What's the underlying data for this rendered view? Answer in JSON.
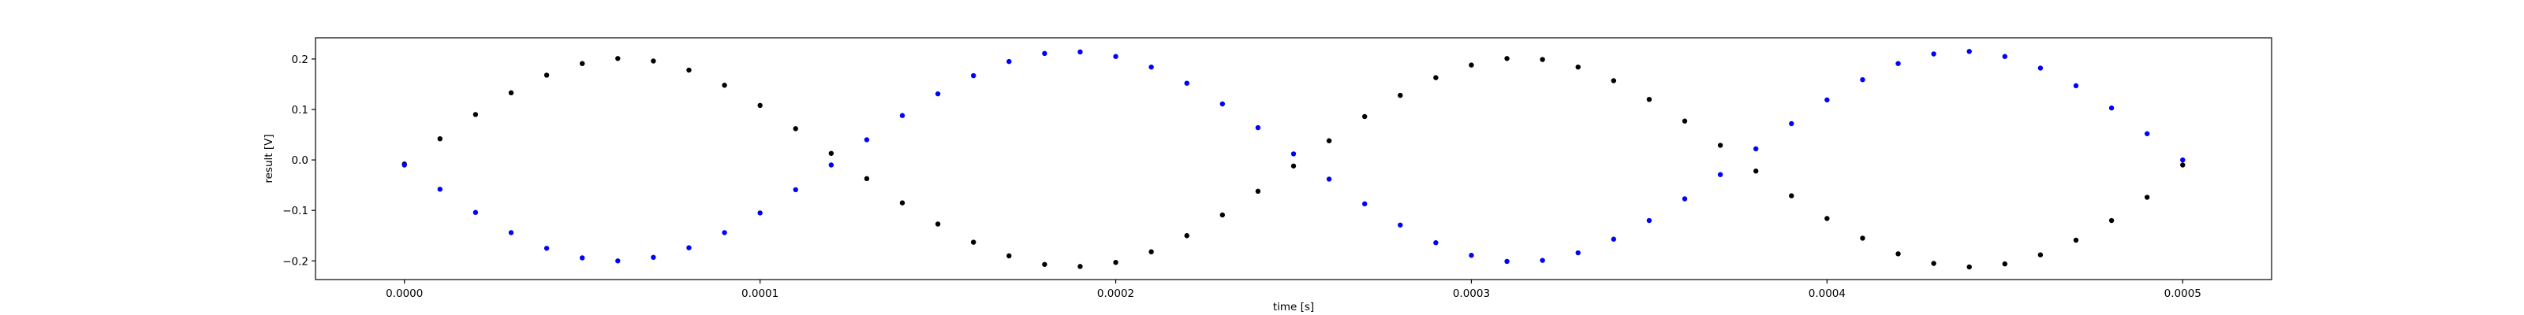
{
  "chart_data": {
    "type": "scatter",
    "title": "",
    "xlabel": "time [s]",
    "ylabel": "result [V]",
    "xlim": [
      -2.5e-05,
      0.000525
    ],
    "ylim": [
      -0.237,
      0.242
    ],
    "grid": false,
    "x_ticks": [
      {
        "value": 0.0,
        "label": "0.0000"
      },
      {
        "value": 0.0001,
        "label": "0.0001"
      },
      {
        "value": 0.0002,
        "label": "0.0002"
      },
      {
        "value": 0.0003,
        "label": "0.0003"
      },
      {
        "value": 0.0004,
        "label": "0.0004"
      },
      {
        "value": 0.0005,
        "label": "0.0005"
      }
    ],
    "y_ticks": [
      {
        "value": -0.2,
        "label": "−0.2"
      },
      {
        "value": -0.1,
        "label": "−0.1"
      },
      {
        "value": 0.0,
        "label": "0.0"
      },
      {
        "value": 0.1,
        "label": "0.1"
      },
      {
        "value": 0.2,
        "label": "0.2"
      }
    ],
    "series": [
      {
        "color": "#000000",
        "x": [
          0.0,
          1e-05,
          2e-05,
          3e-05,
          4e-05,
          5e-05,
          6e-05,
          7e-05,
          8e-05,
          9e-05,
          0.0001,
          0.00011,
          0.00012,
          0.00013,
          0.00014,
          0.00015,
          0.00016,
          0.00017,
          0.00018,
          0.00019,
          0.0002,
          0.00021,
          0.00022,
          0.00023,
          0.00024,
          0.00025,
          0.00026,
          0.00027,
          0.00028,
          0.00029,
          0.0003,
          0.00031,
          0.00032,
          0.00033,
          0.00034,
          0.00035,
          0.00036,
          0.00037,
          0.00038,
          0.00039,
          0.0004,
          0.00041,
          0.00042,
          0.00043,
          0.00044,
          0.00045,
          0.00046,
          0.00047,
          0.00048,
          0.00049,
          0.0005
        ],
        "y": [
          -0.008,
          0.042,
          0.09,
          0.133,
          0.168,
          0.191,
          0.201,
          0.196,
          0.178,
          0.148,
          0.108,
          0.062,
          0.013,
          -0.037,
          -0.085,
          -0.127,
          -0.163,
          -0.19,
          -0.207,
          -0.211,
          -0.203,
          -0.182,
          -0.15,
          -0.109,
          -0.062,
          -0.012,
          0.038,
          0.086,
          0.128,
          0.163,
          0.188,
          0.201,
          0.199,
          0.184,
          0.157,
          0.12,
          0.077,
          0.029,
          -0.022,
          -0.071,
          -0.116,
          -0.155,
          -0.186,
          -0.205,
          -0.212,
          -0.206,
          -0.188,
          -0.159,
          -0.12,
          -0.074,
          -0.01
        ]
      },
      {
        "color": "#0000ff",
        "x": [
          0.0,
          1e-05,
          2e-05,
          3e-05,
          4e-05,
          5e-05,
          6e-05,
          7e-05,
          8e-05,
          9e-05,
          0.0001,
          0.00011,
          0.00012,
          0.00013,
          0.00014,
          0.00015,
          0.00016,
          0.00017,
          0.00018,
          0.00019,
          0.0002,
          0.00021,
          0.00022,
          0.00023,
          0.00024,
          0.00025,
          0.00026,
          0.00027,
          0.00028,
          0.00029,
          0.0003,
          0.00031,
          0.00032,
          0.00033,
          0.00034,
          0.00035,
          0.00036,
          0.00037,
          0.00038,
          0.00039,
          0.0004,
          0.00041,
          0.00042,
          0.00043,
          0.00044,
          0.00045,
          0.00046,
          0.00047,
          0.00048,
          0.00049,
          0.0005
        ],
        "y": [
          -0.01,
          -0.058,
          -0.104,
          -0.144,
          -0.175,
          -0.194,
          -0.2,
          -0.193,
          -0.174,
          -0.144,
          -0.105,
          -0.059,
          -0.01,
          0.04,
          0.088,
          0.131,
          0.167,
          0.195,
          0.211,
          0.214,
          0.205,
          0.184,
          0.152,
          0.111,
          0.064,
          0.012,
          -0.038,
          -0.087,
          -0.129,
          -0.164,
          -0.189,
          -0.201,
          -0.199,
          -0.184,
          -0.157,
          -0.12,
          -0.077,
          -0.029,
          0.022,
          0.072,
          0.119,
          0.159,
          0.191,
          0.21,
          0.215,
          0.205,
          0.182,
          0.147,
          0.103,
          0.052,
          0.0
        ]
      }
    ]
  }
}
